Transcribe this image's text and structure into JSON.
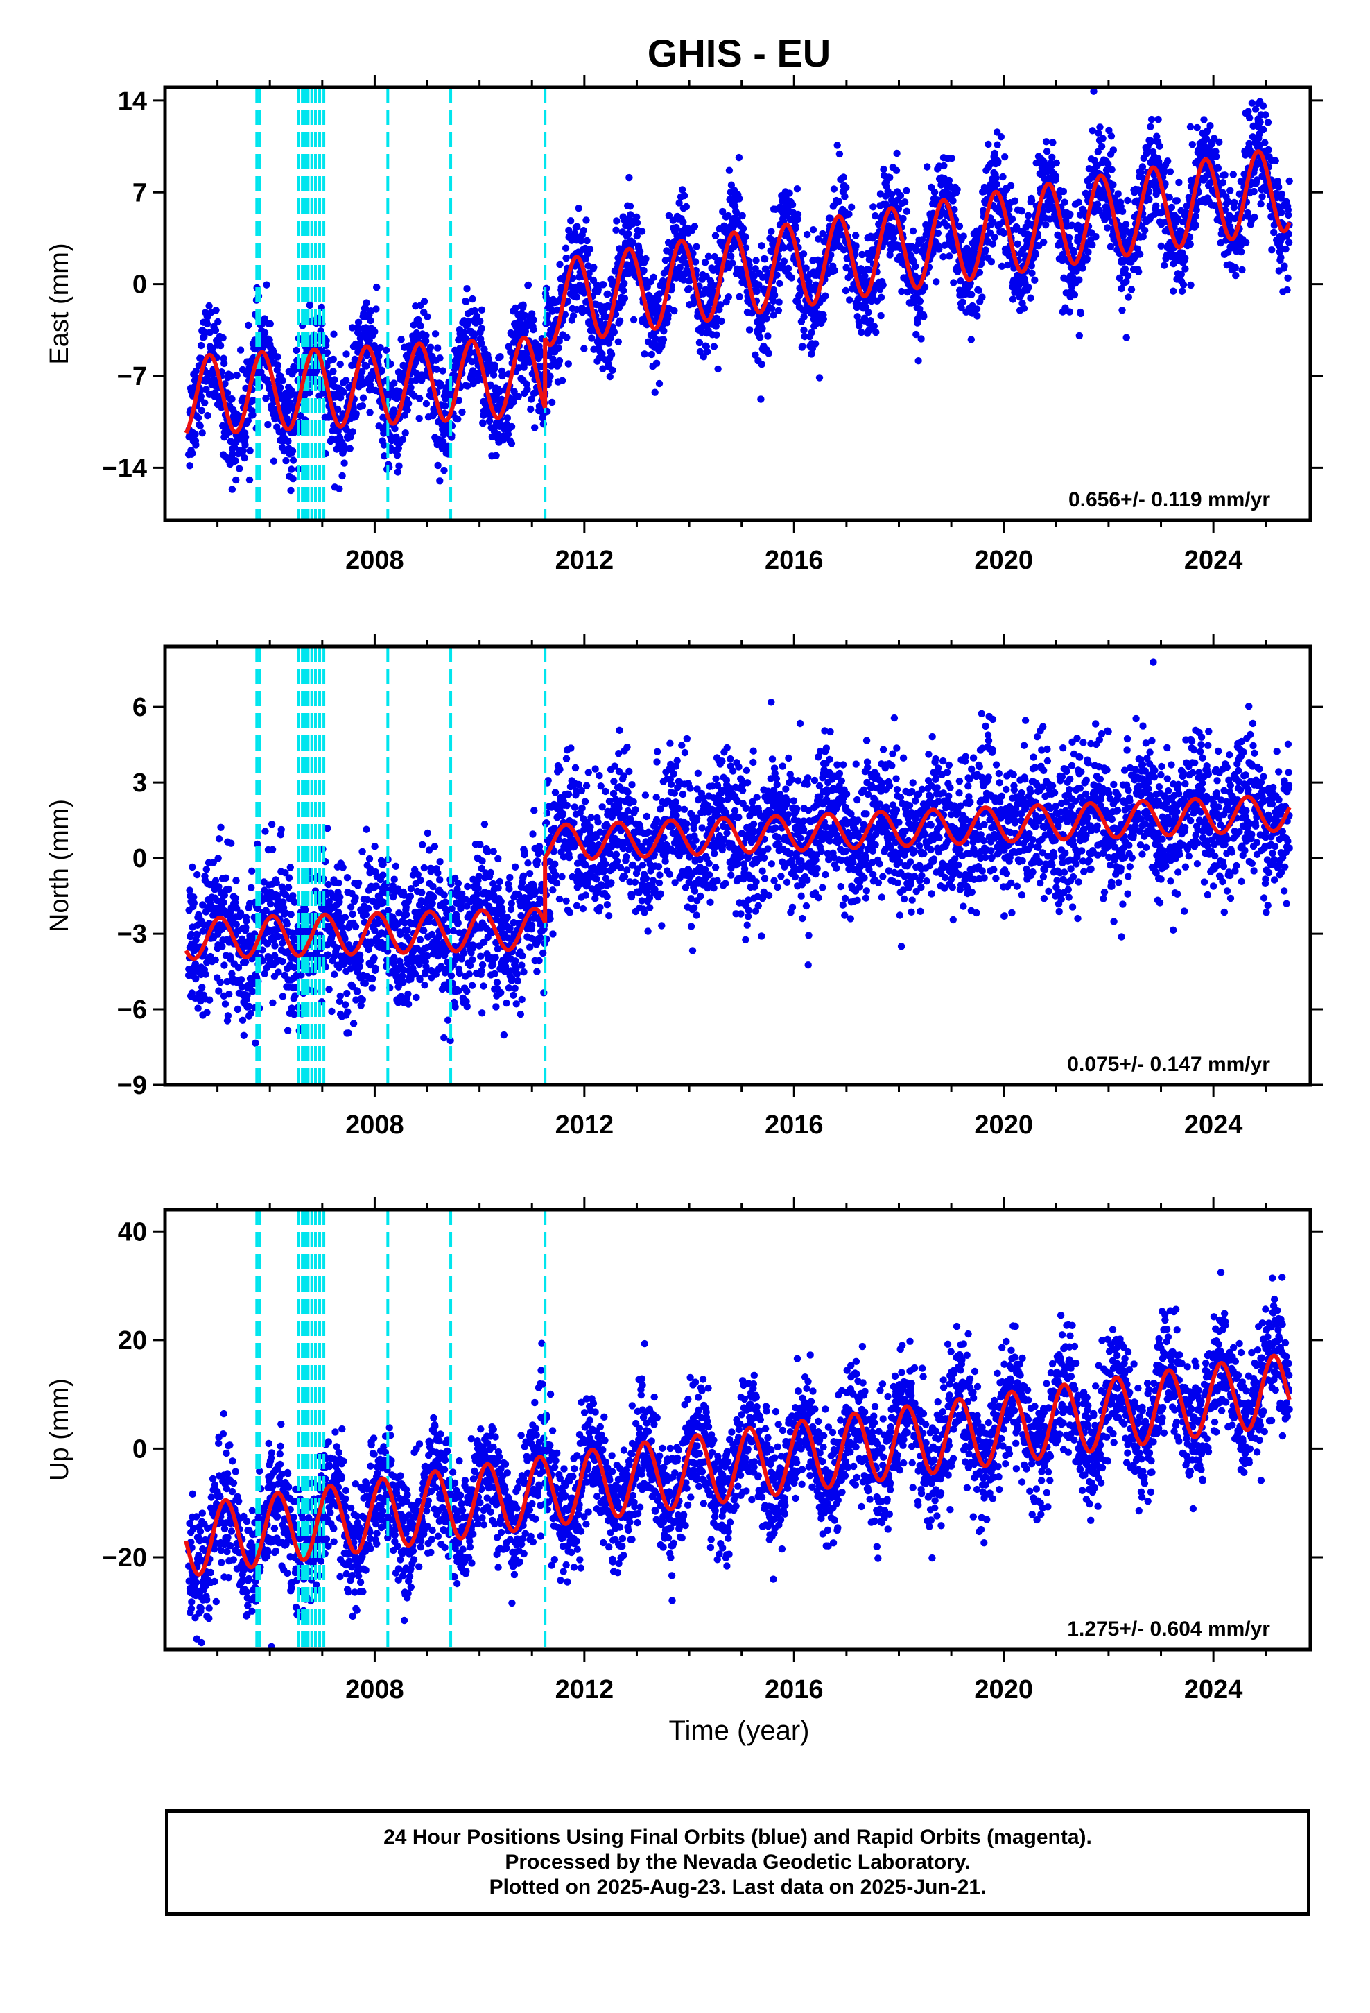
{
  "title": "GHIS - EU",
  "xlabel": "Time (year)",
  "caption": {
    "line1": "24 Hour Positions Using Final Orbits (blue) and Rapid Orbits (magenta).",
    "line2": "Processed by the Nevada Geodetic Laboratory.",
    "line3": "Plotted on 2025-Aug-23. Last data on 2025-Jun-21."
  },
  "colors": {
    "points": "#0000ee",
    "model": "#ee1111",
    "steps": "#00e5ee",
    "axis": "#000000"
  },
  "chart_data": [
    {
      "type": "scatter",
      "ylabel": "East (mm)",
      "xlim": [
        2004.0,
        2025.85
      ],
      "ylim": [
        -18.0,
        15.0
      ],
      "yticks": [
        -14,
        -7,
        0,
        7,
        14
      ],
      "xticks": [
        2008,
        2012,
        2016,
        2020,
        2024
      ],
      "rate_label": "0.656+/- 0.119 mm/yr",
      "step_epochs": [
        2005.75,
        2005.8,
        2006.55,
        2006.62,
        2006.68,
        2006.73,
        2006.8,
        2006.87,
        2006.95,
        2007.03,
        2008.25,
        2009.45,
        2011.25
      ],
      "model": {
        "breaks": [
          2011.25
        ],
        "segments": [
          {
            "t0": 2004.4,
            "t1": 2011.25,
            "v0": -8.5,
            "v1": -7.0,
            "amp": 3.0,
            "phase": 2004.6
          },
          {
            "t0": 2011.25,
            "t1": 2025.45,
            "v0": -1.5,
            "v1": 7.3,
            "amp": 3.2,
            "phase": 2011.6
          }
        ]
      },
      "scatter": {
        "noise": 2.0,
        "start": 2004.45,
        "end": 2025.47,
        "n": 4200
      }
    },
    {
      "type": "scatter",
      "ylabel": "North (mm)",
      "xlim": [
        2004.0,
        2025.85
      ],
      "ylim": [
        -9.0,
        8.4
      ],
      "yticks": [
        -9,
        -6,
        -3,
        0,
        3,
        6
      ],
      "xticks": [
        2008,
        2012,
        2016,
        2020,
        2024
      ],
      "rate_label": "0.075+/- 0.147 mm/yr",
      "step_epochs": [
        2005.75,
        2005.8,
        2006.55,
        2006.62,
        2006.68,
        2006.73,
        2006.8,
        2006.87,
        2006.95,
        2007.03,
        2008.25,
        2009.45,
        2011.25
      ],
      "model": {
        "breaks": [
          2011.25
        ],
        "segments": [
          {
            "t0": 2004.4,
            "t1": 2011.25,
            "v0": -3.2,
            "v1": -2.8,
            "amp": 0.8,
            "phase": 2004.8
          },
          {
            "t0": 2011.25,
            "t1": 2025.45,
            "v0": 0.6,
            "v1": 1.8,
            "amp": 0.7,
            "phase": 2011.4
          }
        ]
      },
      "scatter": {
        "noise": 1.4,
        "start": 2004.45,
        "end": 2025.47,
        "n": 4200
      }
    },
    {
      "type": "scatter",
      "ylabel": "Up (mm)",
      "xlim": [
        2004.0,
        2025.85
      ],
      "ylim": [
        -37.0,
        44.0
      ],
      "yticks": [
        -20,
        0,
        20,
        40
      ],
      "xticks": [
        2008,
        2012,
        2016,
        2020,
        2024
      ],
      "rate_label": "1.275+/- 0.604 mm/yr",
      "step_epochs": [
        2005.75,
        2005.8,
        2006.55,
        2006.62,
        2006.68,
        2006.73,
        2006.8,
        2006.87,
        2006.95,
        2007.03,
        2008.25,
        2009.45,
        2011.25
      ],
      "model": {
        "breaks": [],
        "segments": [
          {
            "t0": 2004.4,
            "t1": 2025.45,
            "v0": -17.0,
            "v1": 11.0,
            "amp": 6.5,
            "phase": 2004.9
          }
        ]
      },
      "scatter": {
        "noise": 5.5,
        "start": 2004.45,
        "end": 2025.47,
        "n": 4200
      }
    }
  ]
}
